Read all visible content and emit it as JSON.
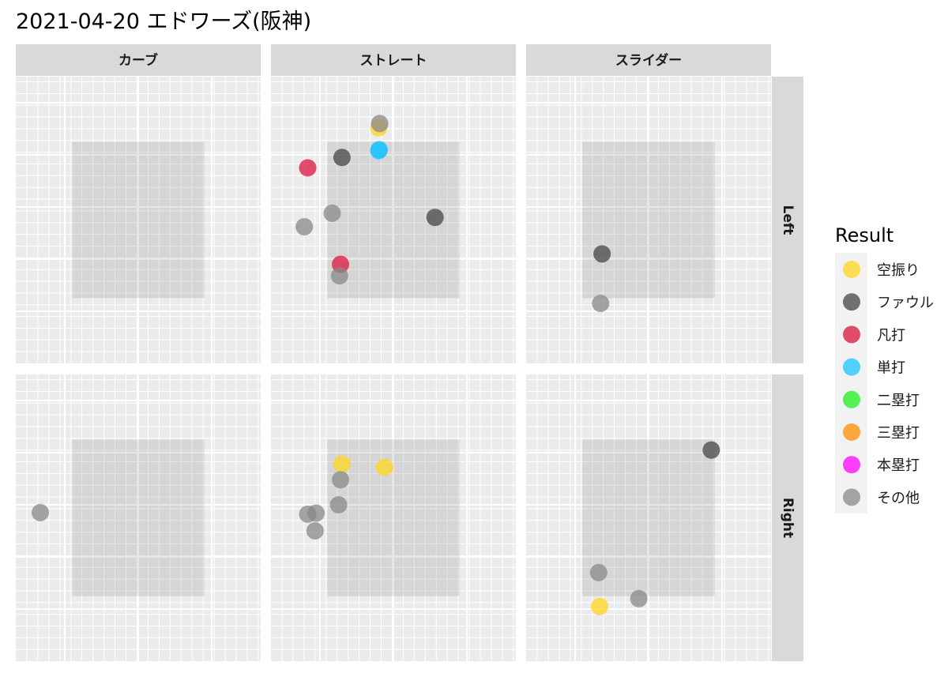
{
  "title": "2021-04-20 エドワーズ(阪神)",
  "chart_data": {
    "type": "scatter",
    "facet_cols": [
      "カーブ",
      "ストレート",
      "スライダー"
    ],
    "facet_rows": [
      "Left",
      "Right"
    ],
    "xlim": [
      -2.5,
      2.5
    ],
    "ylim": [
      0,
      5.5
    ],
    "strike_zone": {
      "x": [
        -1.35,
        1.35
      ],
      "y": [
        1.25,
        4.25
      ]
    },
    "grid_minor_step": 0.225,
    "legend": {
      "title": "Result",
      "position": "right",
      "items": [
        {
          "label": "空振り",
          "color": "#FFD320"
        },
        {
          "label": "ファウル",
          "color": "#444444"
        },
        {
          "label": "凡打",
          "color": "#DC143C"
        },
        {
          "label": "単打",
          "color": "#1EC3FF"
        },
        {
          "label": "二塁打",
          "color": "#22EE22"
        },
        {
          "label": "三塁打",
          "color": "#FF8C00"
        },
        {
          "label": "本塁打",
          "color": "#FF00FF"
        },
        {
          "label": "その他",
          "color": "#888888"
        }
      ]
    },
    "points": [
      {
        "col": 1,
        "row": 0,
        "x": -0.3,
        "y": 4.52,
        "result": "空振り"
      },
      {
        "col": 1,
        "row": 0,
        "x": -0.28,
        "y": 4.6,
        "result": "その他"
      },
      {
        "col": 1,
        "row": 0,
        "x": -0.3,
        "y": 4.08,
        "result": "単打"
      },
      {
        "col": 1,
        "row": 0,
        "x": -0.29,
        "y": 4.1,
        "result": "単打"
      },
      {
        "col": 1,
        "row": 0,
        "x": -1.05,
        "y": 3.95,
        "result": "ファウル"
      },
      {
        "col": 1,
        "row": 0,
        "x": -1.75,
        "y": 3.75,
        "result": "凡打"
      },
      {
        "col": 1,
        "row": 0,
        "x": -1.25,
        "y": 2.88,
        "result": "その他"
      },
      {
        "col": 1,
        "row": 0,
        "x": 0.85,
        "y": 2.8,
        "result": "ファウル"
      },
      {
        "col": 1,
        "row": 0,
        "x": -1.82,
        "y": 2.62,
        "result": "その他"
      },
      {
        "col": 1,
        "row": 0,
        "x": -1.08,
        "y": 1.9,
        "result": "凡打"
      },
      {
        "col": 1,
        "row": 0,
        "x": -1.1,
        "y": 1.68,
        "result": "その他"
      },
      {
        "col": 2,
        "row": 0,
        "x": -0.95,
        "y": 2.1,
        "result": "ファウル"
      },
      {
        "col": 2,
        "row": 0,
        "x": -0.98,
        "y": 1.15,
        "result": "その他"
      },
      {
        "col": 0,
        "row": 1,
        "x": -2.0,
        "y": 2.85,
        "result": "その他"
      },
      {
        "col": 1,
        "row": 1,
        "x": -1.05,
        "y": 3.78,
        "result": "空振り"
      },
      {
        "col": 1,
        "row": 1,
        "x": -0.18,
        "y": 3.72,
        "result": "空振り"
      },
      {
        "col": 1,
        "row": 1,
        "x": -1.08,
        "y": 3.48,
        "result": "その他"
      },
      {
        "col": 1,
        "row": 1,
        "x": -1.12,
        "y": 3.0,
        "result": "その他"
      },
      {
        "col": 1,
        "row": 1,
        "x": -1.75,
        "y": 2.82,
        "result": "その他"
      },
      {
        "col": 1,
        "row": 1,
        "x": -1.58,
        "y": 2.84,
        "result": "その他"
      },
      {
        "col": 1,
        "row": 1,
        "x": -1.6,
        "y": 2.5,
        "result": "その他"
      },
      {
        "col": 2,
        "row": 1,
        "x": 1.28,
        "y": 4.05,
        "result": "ファウル"
      },
      {
        "col": 2,
        "row": 1,
        "x": -1.02,
        "y": 1.7,
        "result": "その他"
      },
      {
        "col": 2,
        "row": 1,
        "x": -0.2,
        "y": 1.2,
        "result": "その他"
      },
      {
        "col": 2,
        "row": 1,
        "x": -1.0,
        "y": 1.05,
        "result": "空振り"
      }
    ]
  }
}
